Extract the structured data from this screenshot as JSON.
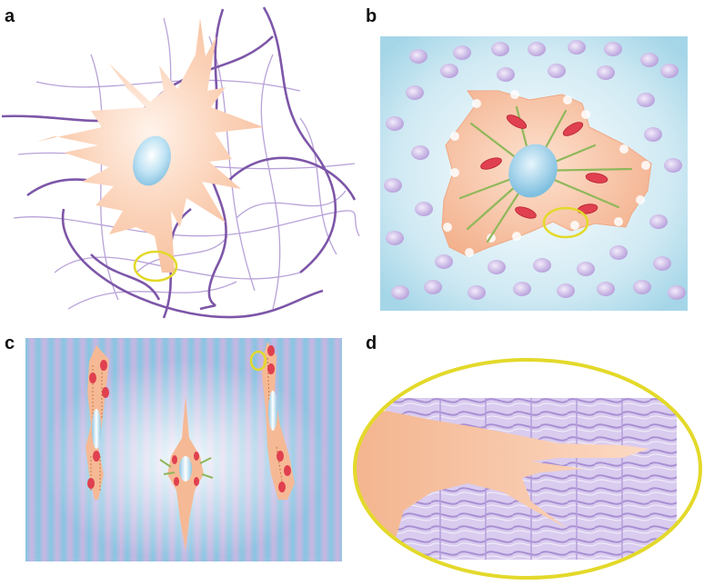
{
  "panels": [
    {
      "id": "a",
      "label": "a"
    },
    {
      "id": "b",
      "label": "b"
    },
    {
      "id": "c",
      "label": "c"
    },
    {
      "id": "d",
      "label": "d"
    }
  ],
  "colors": {
    "cell": "#f8c6a6",
    "fiber": "#7d56a8",
    "fiber_light": "#b49ad4",
    "nucleus": "#9fd0ea",
    "substrate_blue": "#a9d9ea",
    "bead": "#c7b4e3",
    "mitochondria": "#e0404f",
    "stress_fiber": "#8fb85a",
    "highlight_ring": "#e3d92a",
    "stripe_purple": "#c6b3e0",
    "stripe_blue": "#8fcbe3"
  }
}
